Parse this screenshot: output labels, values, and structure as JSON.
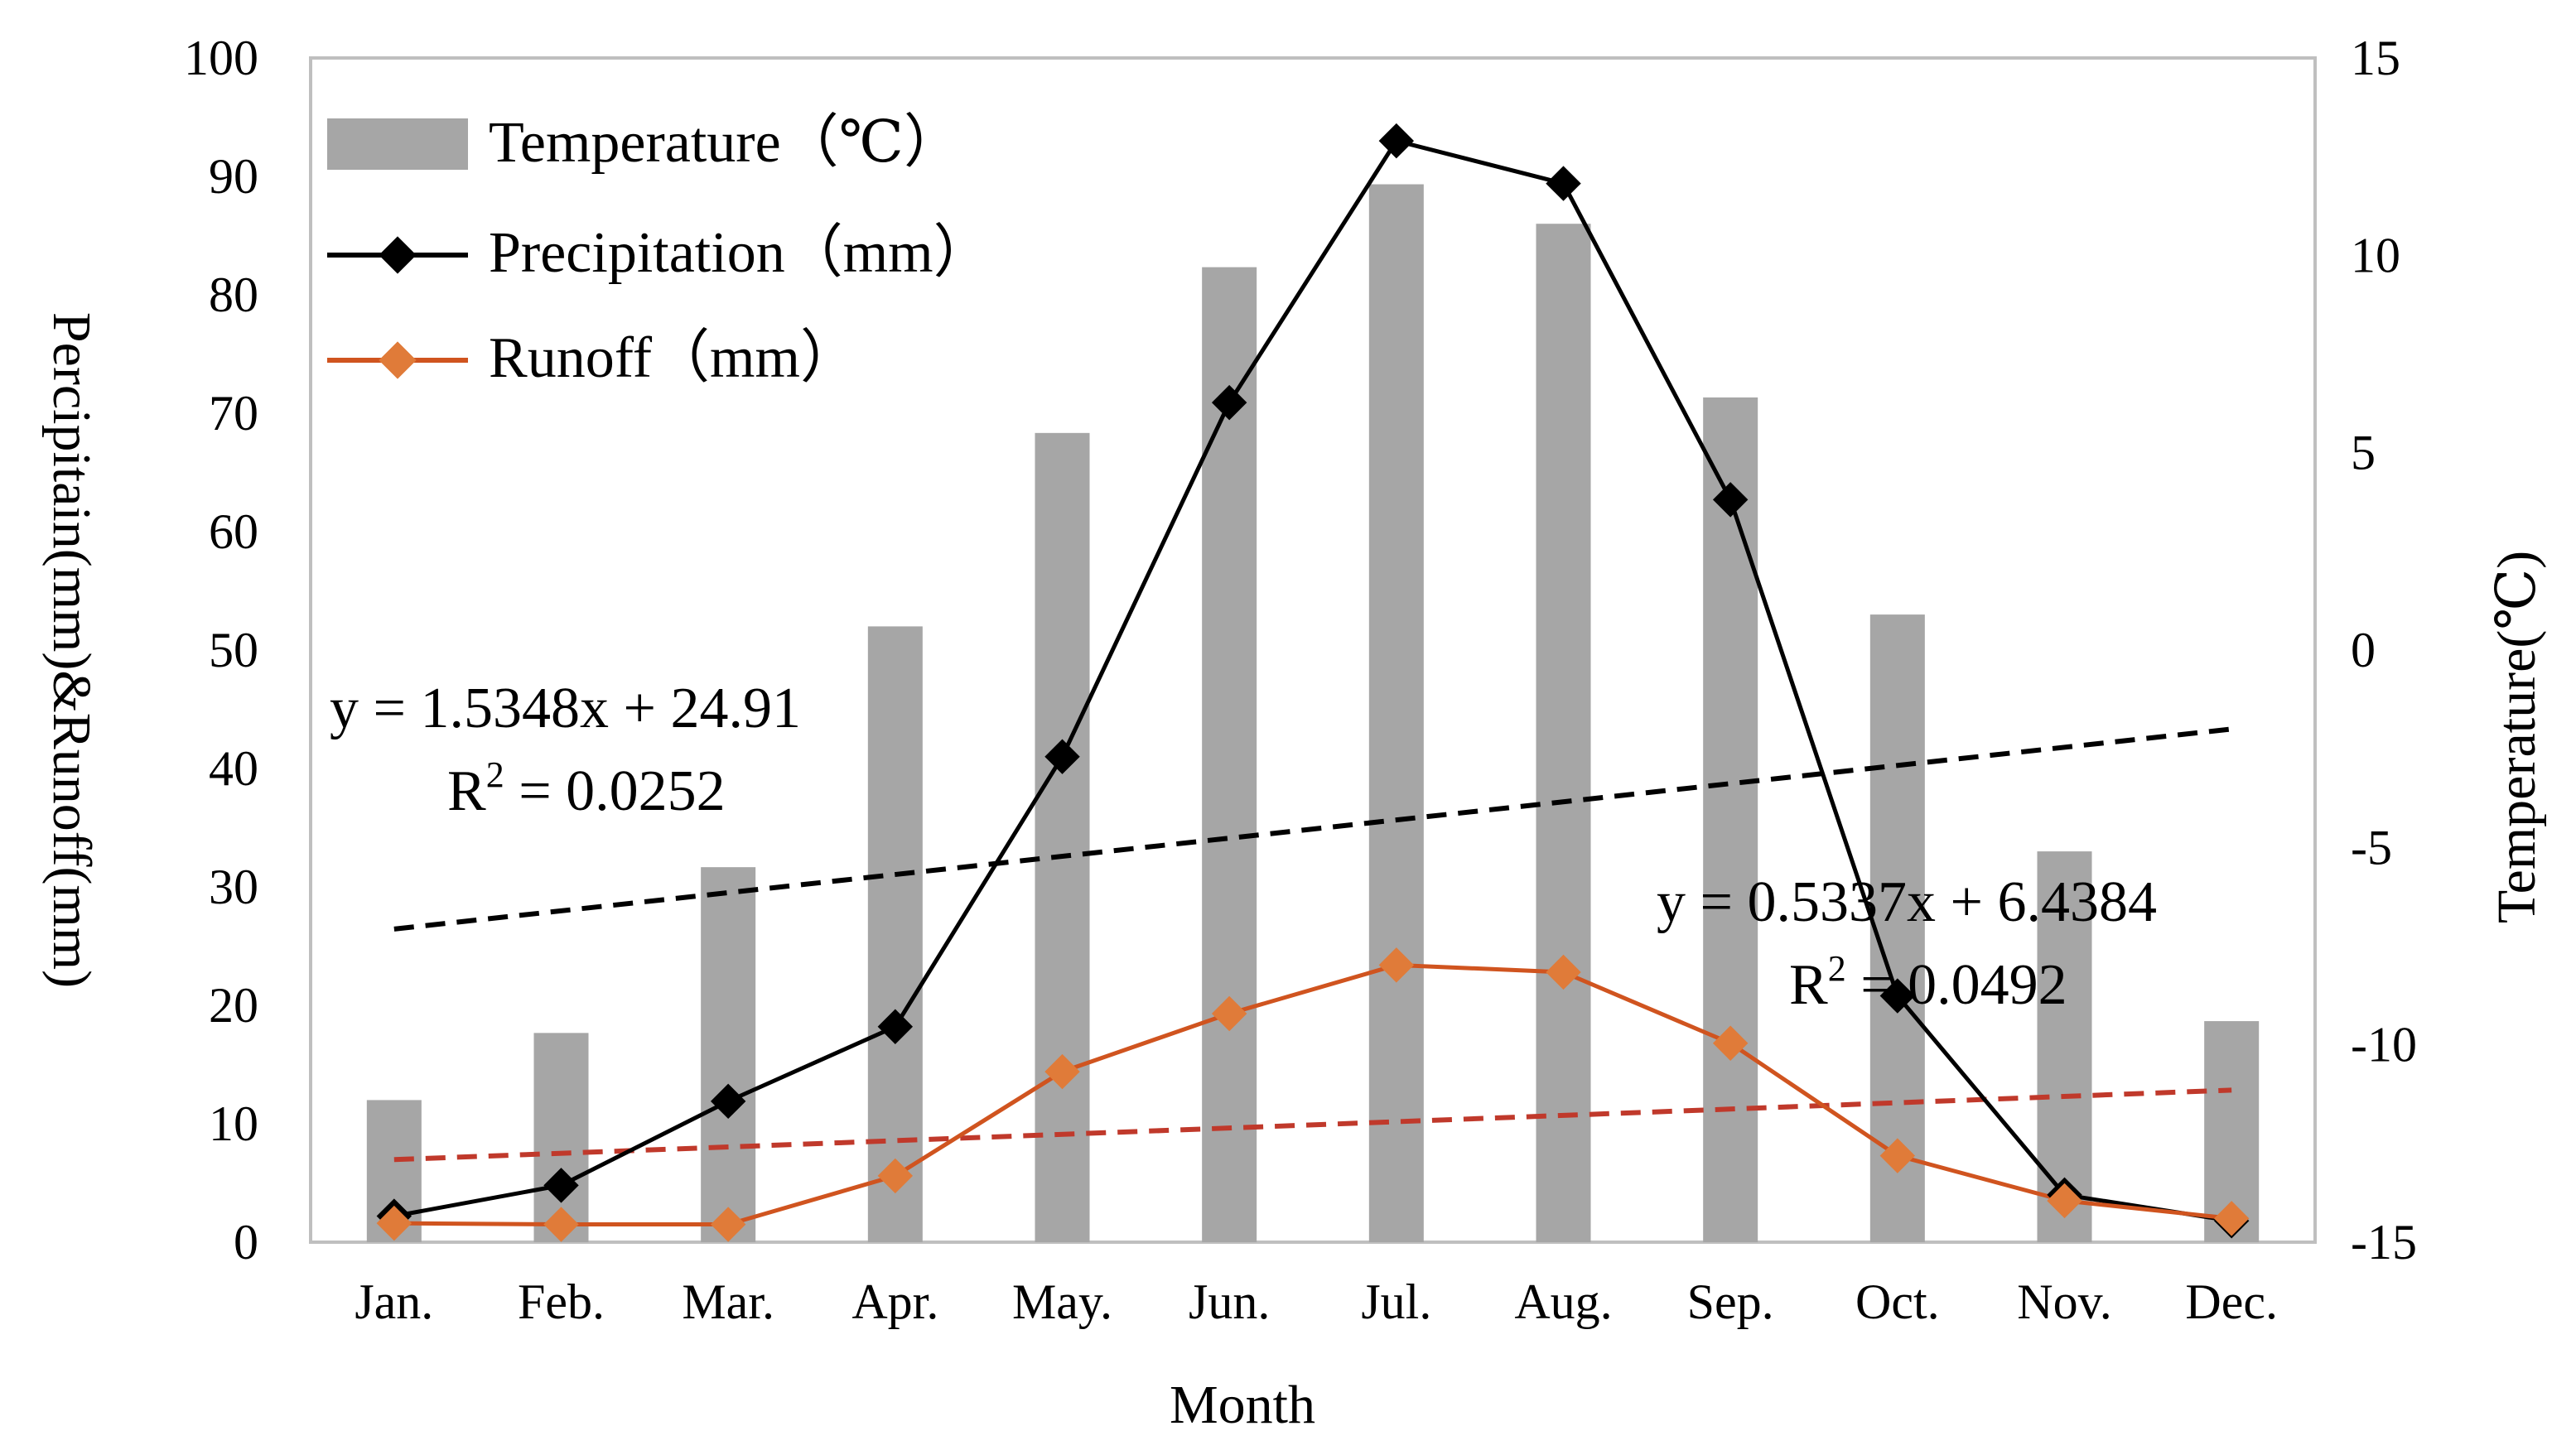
{
  "chart_data": {
    "type": "bar",
    "title": "",
    "categories": [
      "Jan.",
      "Feb.",
      "Mar.",
      "Apr.",
      "May.",
      "Jun.",
      "Jul.",
      "Aug.",
      "Sep.",
      "Oct.",
      "Nov.",
      "Dec."
    ],
    "xlabel": "Month",
    "ylabel_left": "Percipitain(mm)&Runoff(mm)",
    "ylabel_right": "Temperature(℃)",
    "ylim_left": [
      0,
      100
    ],
    "ylim_right": [
      -15,
      15
    ],
    "yticks_left": [
      "0",
      "10",
      "20",
      "30",
      "40",
      "50",
      "60",
      "70",
      "80",
      "90",
      "100"
    ],
    "yticks_right": [
      "-15",
      "-10",
      "-5",
      "0",
      "5",
      "10",
      "15"
    ],
    "grid": false,
    "legend_position": "top-left",
    "series": [
      {
        "name": "Temperature（℃）",
        "type": "bar",
        "axis": "right",
        "color": "#a6a6a6",
        "values": [
          -11.4,
          -9.7,
          -5.5,
          0.6,
          5.5,
          9.7,
          11.8,
          10.8,
          6.4,
          0.9,
          -5.1,
          -9.4
        ]
      },
      {
        "name": "Precipitation（mm）",
        "type": "line",
        "axis": "left",
        "color": "#000000",
        "values": [
          2.2,
          4.8,
          11.9,
          18.2,
          41.0,
          70.9,
          93.0,
          89.4,
          62.7,
          20.8,
          4.0,
          1.8
        ]
      },
      {
        "name": "Runoff（mm）",
        "type": "line",
        "axis": "left",
        "color": "#d0541f",
        "values": [
          1.6,
          1.5,
          1.5,
          5.6,
          14.4,
          19.3,
          23.4,
          22.8,
          16.8,
          7.3,
          3.5,
          2.0
        ]
      }
    ],
    "trendlines": [
      {
        "series": "Precipitation（mm）",
        "slope": 1.5348,
        "intercept": 24.91,
        "color": "#000000",
        "equation": "y = 1.5348x + 24.91",
        "r2_prefix": "R",
        "r2_exp": "2",
        "r2_value": " = 0.0252"
      },
      {
        "series": "Runoff（mm）",
        "slope": 0.5337,
        "intercept": 6.4384,
        "color": "#c0392b",
        "equation": "y = 0.5337x + 6.4384",
        "r2_prefix": "R",
        "r2_exp": "2",
        "r2_value": " = 0.0492"
      }
    ]
  }
}
